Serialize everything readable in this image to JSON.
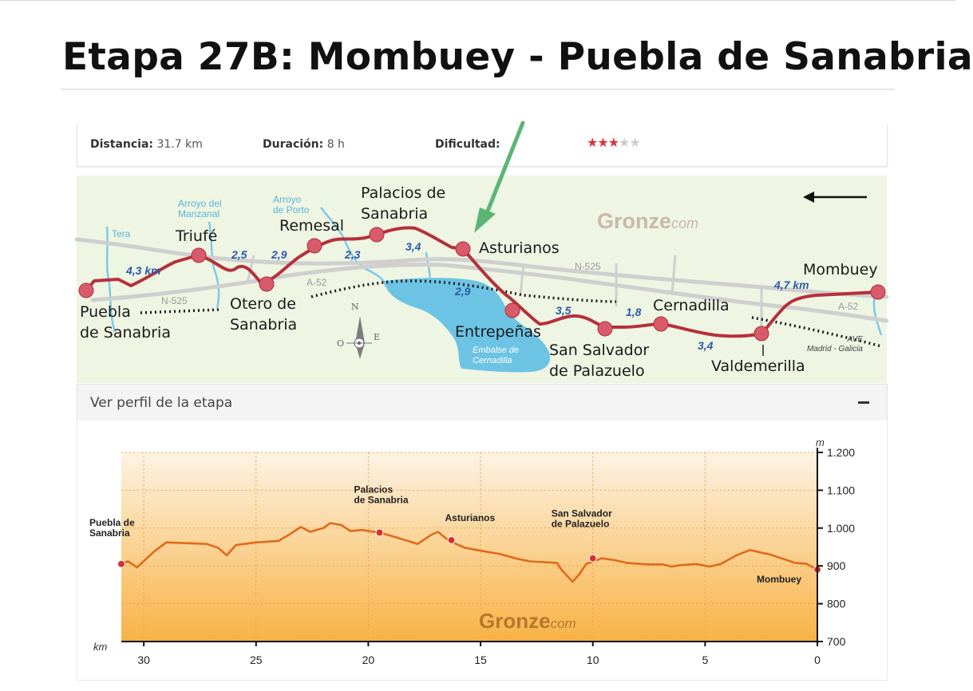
{
  "slide": {
    "title": "Etapa 27B: Mombuey - Puebla de Sanabria"
  },
  "stats": {
    "distance_label": "Distancia:",
    "distance_value": "31.7 km",
    "duration_label": "Duración:",
    "duration_value": "8 h",
    "difficulty_label": "Dificultad:",
    "difficulty_stars": 3,
    "difficulty_max": 5
  },
  "colors": {
    "route": "#b5303c",
    "water": "#6cc3e4",
    "stop": "#d95a6a",
    "profile_line": "#e06a1c",
    "arrow": "#5bb676",
    "star_on": "#d8343c",
    "star_off": "#cccccc"
  },
  "map": {
    "towns": {
      "puebla": "Puebla\nde Sanabria",
      "triufe": "Triufé",
      "otero": "Otero de\nSanabria",
      "remesal": "Remesal",
      "palacios": "Palacios de\nSanabria",
      "asturianos": "Asturianos",
      "entrepenas": "Entrepeñas",
      "sansalvador": "San Salvador\nde Palazuelo",
      "cernadilla": "Cernadilla",
      "valdemerilla": "Valdemerilla",
      "mombuey": "Mombuey"
    },
    "distances": {
      "d1": "4,3 km",
      "d2": "2,5",
      "d3": "2,9",
      "d4": "2,3",
      "d5": "3,4",
      "d6": "2,9",
      "d7": "3,5",
      "d8": "1,8",
      "d9": "3,4",
      "d10": "4,7 km"
    },
    "rivers": {
      "tera": "Tera",
      "manzanal": "Arroyo del\nManzanal",
      "porto": "Arroyo\nde Porto"
    },
    "roads": {
      "n525_left": "N-525",
      "n525_right": "N-525",
      "a52_left": "A-52",
      "a52_right": "A-52"
    },
    "reservoir": "Embalse de\nCernadilla",
    "rail": "AVE\nMadrid - Galicia",
    "brand": "Gronze",
    "brand_suffix": "com",
    "compass": {
      "n": "N",
      "o": "O",
      "e": "E"
    }
  },
  "profile": {
    "toggle_label": "Ver perfil de la etapa",
    "toggle_symbol": "−",
    "brand": "Gronze",
    "brand_suffix": "com",
    "x_unit": "km",
    "y_unit": "m",
    "x_ticks": [
      30,
      25,
      20,
      15,
      10,
      5,
      0
    ],
    "y_ticks": [
      700,
      800,
      900,
      1000,
      1100,
      1200
    ],
    "y_tick_labels": [
      "700",
      "800",
      "900",
      "1.000",
      "1.100",
      "1.200"
    ],
    "x_range": [
      31,
      0
    ],
    "y_range": [
      700,
      1200
    ],
    "elevation": [
      [
        31,
        905
      ],
      [
        30.7,
        912
      ],
      [
        30.3,
        896
      ],
      [
        29.5,
        940
      ],
      [
        29,
        962
      ],
      [
        28,
        960
      ],
      [
        27.2,
        958
      ],
      [
        26.7,
        948
      ],
      [
        26.3,
        928
      ],
      [
        25.9,
        955
      ],
      [
        25,
        962
      ],
      [
        24,
        966
      ],
      [
        23.6,
        980
      ],
      [
        23,
        1003
      ],
      [
        22.6,
        990
      ],
      [
        22,
        1000
      ],
      [
        21.7,
        1013
      ],
      [
        21.2,
        1008
      ],
      [
        20.8,
        992
      ],
      [
        20.3,
        995
      ],
      [
        19.5,
        988
      ],
      [
        18.9,
        978
      ],
      [
        17.8,
        958
      ],
      [
        17.2,
        982
      ],
      [
        16.9,
        990
      ],
      [
        16.4,
        966
      ],
      [
        15.7,
        948
      ],
      [
        15,
        940
      ],
      [
        14.2,
        932
      ],
      [
        13.3,
        918
      ],
      [
        12.8,
        912
      ],
      [
        12.2,
        910
      ],
      [
        11.6,
        908
      ],
      [
        11.4,
        890
      ],
      [
        10.9,
        858
      ],
      [
        10.6,
        878
      ],
      [
        10.3,
        905
      ],
      [
        9.6,
        920
      ],
      [
        9,
        915
      ],
      [
        8.5,
        908
      ],
      [
        7.6,
        904
      ],
      [
        6.9,
        904
      ],
      [
        6.5,
        898
      ],
      [
        6.1,
        902
      ],
      [
        5.4,
        905
      ],
      [
        4.8,
        898
      ],
      [
        4.3,
        905
      ],
      [
        3.6,
        928
      ],
      [
        3,
        942
      ],
      [
        2.5,
        935
      ],
      [
        2.1,
        930
      ],
      [
        1.6,
        920
      ],
      [
        1,
        908
      ],
      [
        0.5,
        906
      ],
      [
        0,
        890
      ]
    ],
    "stops": [
      {
        "name": "Puebla de\nSanabria",
        "km": 31,
        "elev": 905
      },
      {
        "name": "Palacios\nde Sanabria",
        "km": 19.5,
        "elev": 988
      },
      {
        "name": "Asturianos",
        "km": 16.3,
        "elev": 968
      },
      {
        "name": "San Salvador\nde Palazuelo",
        "km": 10,
        "elev": 920
      },
      {
        "name": "Mombuey",
        "km": 0,
        "elev": 890
      }
    ]
  }
}
